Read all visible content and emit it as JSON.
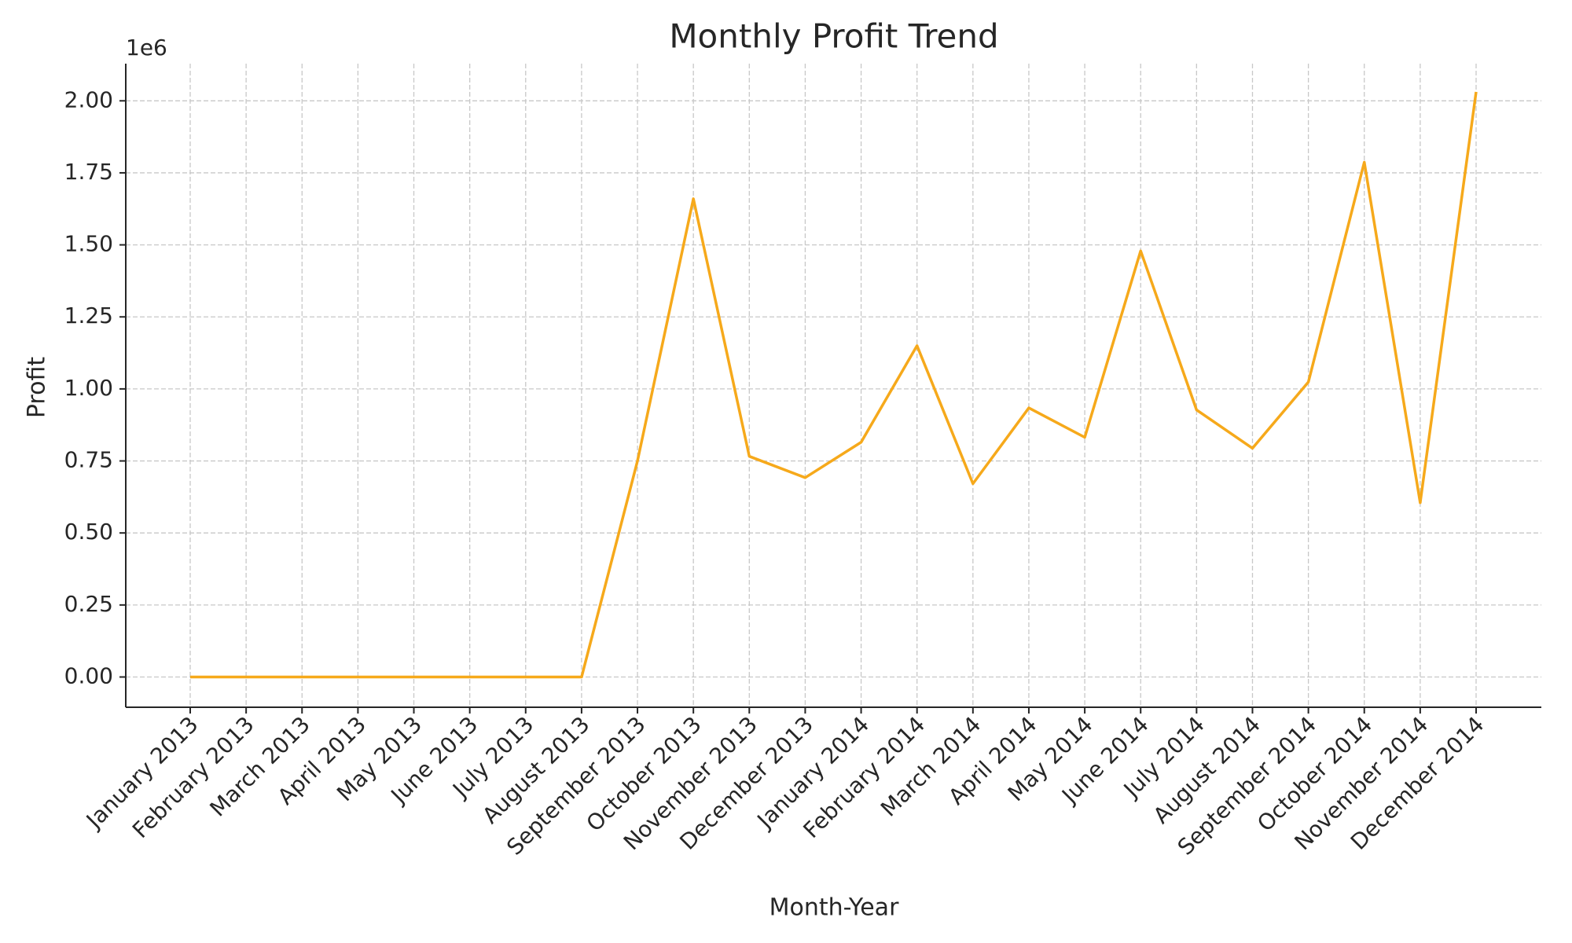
{
  "chart_data": {
    "type": "line",
    "title": "Monthly Profit Trend",
    "x_label": "Month-Year",
    "y_label": "Profit",
    "y_offset_label": "1e6",
    "categories": [
      "January 2013",
      "February 2013",
      "March 2013",
      "April 2013",
      "May 2013",
      "June 2013",
      "July 2013",
      "August 2013",
      "September 2013",
      "October 2013",
      "November 2013",
      "December 2013",
      "January 2014",
      "February 2014",
      "March 2014",
      "April 2014",
      "May 2014",
      "June 2014",
      "July 2014",
      "August 2014",
      "September 2014",
      "October 2014",
      "November 2014",
      "December 2014"
    ],
    "series": [
      {
        "name": "Profit",
        "color": "#f6a91b",
        "values": [
          0,
          0,
          0,
          0,
          0,
          0,
          0,
          0,
          0.75,
          1.66,
          0.766,
          0.692,
          0.815,
          1.15,
          0.671,
          0.934,
          0.832,
          1.479,
          0.927,
          0.794,
          1.024,
          1.787,
          0.605,
          2.031
        ]
      }
    ],
    "ylim": [
      -0.105,
      2.129
    ],
    "yticks": [
      {
        "value": 0,
        "label": "0.00"
      },
      0.25,
      {
        "value": 0.5,
        "label": "0.50"
      },
      0.75,
      {
        "value": 1,
        "label": "1.00"
      },
      1.25,
      {
        "value": 1.5,
        "label": "1.50"
      },
      1.75,
      {
        "value": 2,
        "label": "2.00"
      }
    ],
    "grid": true
  }
}
